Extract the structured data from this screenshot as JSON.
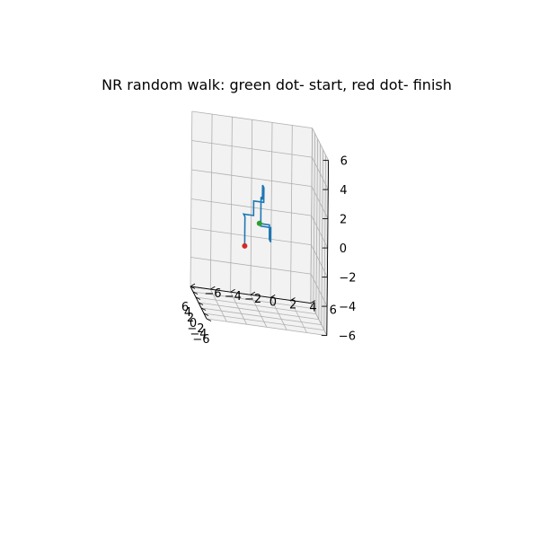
{
  "chart_data": {
    "type": "line3d",
    "title": "NR random walk: green dot- start, red dot- finish",
    "xlabel": "",
    "ylabel": "",
    "zlabel": "",
    "xlim": [
      -6,
      6
    ],
    "ylim": [
      -6,
      6
    ],
    "zlim": [
      -6,
      6
    ],
    "x_ticks": [
      "−6",
      "−4",
      "−2",
      "0",
      "2",
      "4",
      "6"
    ],
    "y_ticks": [
      "−6",
      "−4",
      "−2",
      "0",
      "2",
      "4",
      "6"
    ],
    "z_ticks": [
      "−6",
      "−4",
      "−2",
      "0",
      "2",
      "4",
      "6"
    ],
    "grid": true,
    "series": [
      {
        "color": "#1f77b4",
        "points": [
          [
            0,
            0,
            0
          ],
          [
            0,
            1,
            0
          ],
          [
            0,
            1,
            -1
          ],
          [
            -1,
            1,
            -1
          ],
          [
            -1,
            1,
            0
          ],
          [
            -1,
            0,
            0
          ],
          [
            -1,
            0,
            1
          ],
          [
            -1,
            0,
            2
          ],
          [
            -2,
            0,
            2
          ],
          [
            -2,
            0,
            3
          ],
          [
            -3,
            0,
            3
          ],
          [
            -3,
            0,
            2
          ],
          [
            -3,
            -1,
            2
          ],
          [
            -3,
            -1,
            1
          ],
          [
            -3,
            -2,
            1
          ],
          [
            -4,
            -2,
            1
          ],
          [
            -4,
            -2,
            0
          ],
          [
            -4,
            -2,
            -1
          ]
        ]
      }
    ],
    "start": {
      "point": [
        0,
        0,
        0
      ],
      "color": "#2ca02c"
    },
    "finish": {
      "point": [
        -4,
        -2,
        -1
      ],
      "color": "#d62728"
    }
  }
}
